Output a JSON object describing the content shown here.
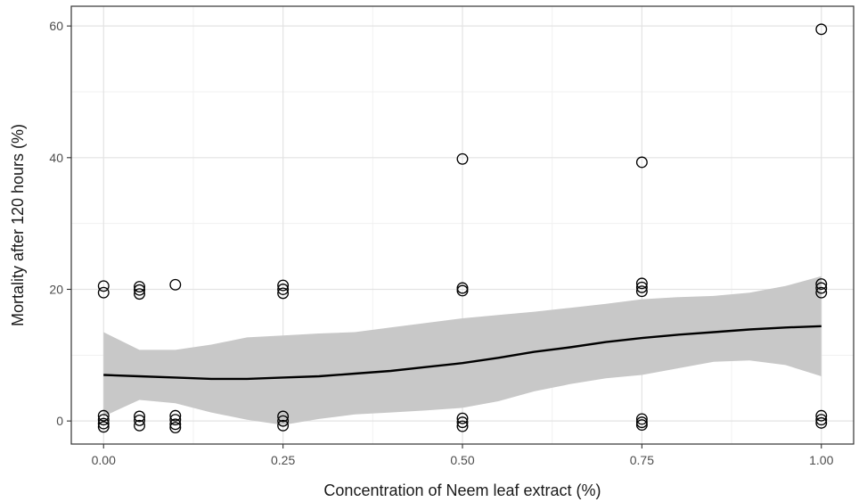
{
  "chart_data": {
    "type": "scatter",
    "title": "",
    "xlabel": "Concentration of Neem leaf extract (%)",
    "ylabel": "Mortality after 120 hours (%)",
    "xlim": [
      -0.045,
      1.045
    ],
    "ylim": [
      -3.5,
      63
    ],
    "x_ticks": [
      0.0,
      0.25,
      0.5,
      0.75,
      1.0
    ],
    "x_tick_labels": [
      "0.00",
      "0.25",
      "0.50",
      "0.75",
      "1.00"
    ],
    "y_ticks": [
      0,
      20,
      40,
      60
    ],
    "y_tick_labels": [
      "0",
      "20",
      "40",
      "60"
    ],
    "x_minor_ticks": [
      0.125,
      0.375,
      0.625,
      0.875
    ],
    "y_minor_ticks": [
      10,
      30,
      50
    ],
    "grid": true,
    "theme": "bw",
    "colors": {
      "points": "#000000",
      "smooth_line": "#000000",
      "confidence_band": "#c8c8c8",
      "grid_major": "#e3e3e3",
      "grid_minor": "#f1f1f1",
      "panel_border": "#333333"
    },
    "points": [
      {
        "x": 0.0,
        "y": 20.5
      },
      {
        "x": 0.0,
        "y": 19.5
      },
      {
        "x": 0.0,
        "y": 0.8
      },
      {
        "x": 0.0,
        "y": 0.2
      },
      {
        "x": 0.0,
        "y": -0.4
      },
      {
        "x": 0.0,
        "y": -0.9
      },
      {
        "x": 0.05,
        "y": 20.4
      },
      {
        "x": 0.05,
        "y": 19.9
      },
      {
        "x": 0.05,
        "y": 19.3
      },
      {
        "x": 0.05,
        "y": 0.7
      },
      {
        "x": 0.05,
        "y": 0.1
      },
      {
        "x": 0.05,
        "y": -0.7
      },
      {
        "x": 0.1,
        "y": 20.7
      },
      {
        "x": 0.1,
        "y": 0.8
      },
      {
        "x": 0.1,
        "y": 0.2
      },
      {
        "x": 0.1,
        "y": -0.5
      },
      {
        "x": 0.1,
        "y": -1.0
      },
      {
        "x": 0.25,
        "y": 20.6
      },
      {
        "x": 0.25,
        "y": 20.0
      },
      {
        "x": 0.25,
        "y": 19.4
      },
      {
        "x": 0.25,
        "y": 0.7
      },
      {
        "x": 0.25,
        "y": 0.0
      },
      {
        "x": 0.25,
        "y": -0.7
      },
      {
        "x": 0.5,
        "y": 39.8
      },
      {
        "x": 0.5,
        "y": 20.2
      },
      {
        "x": 0.5,
        "y": 19.8
      },
      {
        "x": 0.5,
        "y": 0.4
      },
      {
        "x": 0.5,
        "y": -0.2
      },
      {
        "x": 0.5,
        "y": -0.8
      },
      {
        "x": 0.75,
        "y": 39.3
      },
      {
        "x": 0.75,
        "y": 20.9
      },
      {
        "x": 0.75,
        "y": 20.3
      },
      {
        "x": 0.75,
        "y": 19.7
      },
      {
        "x": 0.75,
        "y": 0.3
      },
      {
        "x": 0.75,
        "y": -0.2
      },
      {
        "x": 0.75,
        "y": -0.6
      },
      {
        "x": 1.0,
        "y": 59.5
      },
      {
        "x": 1.0,
        "y": 20.8
      },
      {
        "x": 1.0,
        "y": 20.2
      },
      {
        "x": 1.0,
        "y": 19.5
      },
      {
        "x": 1.0,
        "y": 0.8
      },
      {
        "x": 1.0,
        "y": 0.2
      },
      {
        "x": 1.0,
        "y": -0.3
      }
    ],
    "smooth": {
      "method": "loess",
      "x": [
        0.0,
        0.05,
        0.1,
        0.15,
        0.2,
        0.25,
        0.3,
        0.35,
        0.4,
        0.45,
        0.5,
        0.55,
        0.6,
        0.65,
        0.7,
        0.75,
        0.8,
        0.85,
        0.9,
        0.95,
        1.0
      ],
      "y": [
        7.0,
        6.8,
        6.6,
        6.4,
        6.4,
        6.6,
        6.8,
        7.2,
        7.6,
        8.2,
        8.8,
        9.6,
        10.5,
        11.2,
        12.0,
        12.6,
        13.1,
        13.5,
        13.9,
        14.2,
        14.4
      ],
      "lower": [
        0.7,
        3.2,
        2.7,
        1.3,
        0.2,
        -0.6,
        0.3,
        1.0,
        1.3,
        1.6,
        2.0,
        3.0,
        4.5,
        5.6,
        6.5,
        7.0,
        8.0,
        9.0,
        9.2,
        8.5,
        6.8
      ],
      "upper": [
        13.5,
        10.8,
        10.8,
        11.6,
        12.7,
        13.0,
        13.3,
        13.5,
        14.2,
        14.9,
        15.6,
        16.1,
        16.6,
        17.2,
        17.8,
        18.5,
        18.8,
        19.0,
        19.5,
        20.5,
        22.0
      ]
    }
  }
}
